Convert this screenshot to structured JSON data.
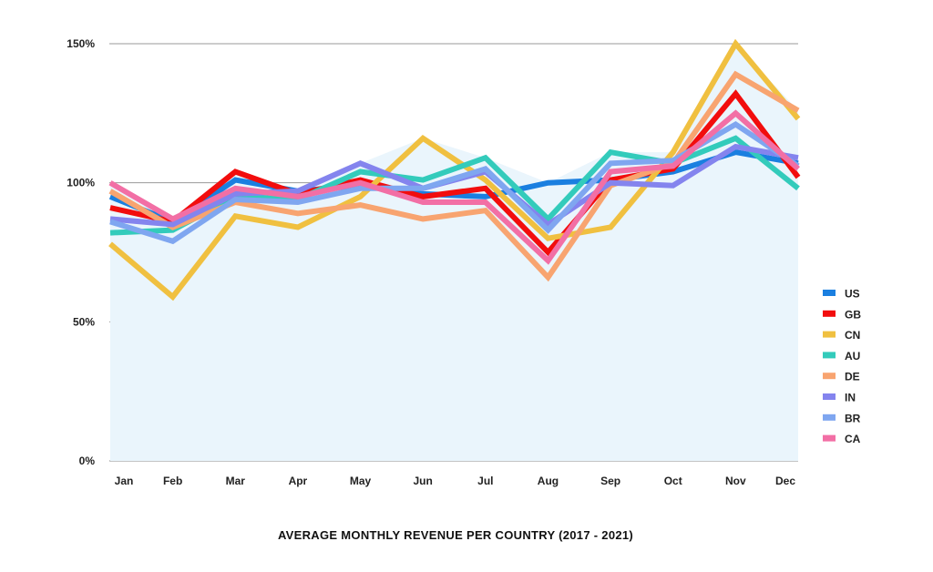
{
  "chart_data": {
    "type": "line",
    "title": "AVERAGE MONTHLY REVENUE PER COUNTRY (2017 - 2021)",
    "xlabel": "",
    "ylabel": "",
    "categories": [
      "Jan",
      "Feb",
      "Mar",
      "Apr",
      "May",
      "Jun",
      "Jul",
      "Aug",
      "Sep",
      "Oct",
      "Nov",
      "Dec"
    ],
    "y_ticks": [
      "0%",
      "50%",
      "100%",
      "150%"
    ],
    "ylim": [
      0,
      150
    ],
    "grid": true,
    "legend_position": "right",
    "area_fill_color": "#eaf5fc",
    "series": [
      {
        "name": "US",
        "color": "#1a7fe0",
        "values": [
          95,
          86,
          101,
          97,
          99,
          96,
          95,
          100,
          101,
          104,
          111,
          107
        ]
      },
      {
        "name": "GB",
        "color": "#f20d0d",
        "values": [
          91,
          86,
          104,
          96,
          101,
          95,
          98,
          75,
          101,
          105,
          132,
          102
        ]
      },
      {
        "name": "CN",
        "color": "#f0c040",
        "values": [
          78,
          59,
          88,
          84,
          95,
          116,
          101,
          80,
          84,
          111,
          150,
          123
        ]
      },
      {
        "name": "AU",
        "color": "#33cbbb",
        "values": [
          82,
          83,
          95,
          94,
          104,
          101,
          109,
          87,
          111,
          107,
          116,
          98
        ]
      },
      {
        "name": "DE",
        "color": "#f8a470",
        "values": [
          97,
          84,
          93,
          89,
          92,
          87,
          90,
          66,
          99,
          107,
          139,
          126
        ]
      },
      {
        "name": "IN",
        "color": "#8484ee",
        "values": [
          87,
          85,
          96,
          97,
          107,
          98,
          104,
          85,
          100,
          99,
          113,
          109
        ]
      },
      {
        "name": "BR",
        "color": "#7fa6f0",
        "values": [
          86,
          79,
          94,
          93,
          98,
          98,
          105,
          83,
          107,
          108,
          121,
          106
        ]
      },
      {
        "name": "CA",
        "color": "#f26fa5",
        "values": [
          100,
          87,
          98,
          95,
          100,
          93,
          93,
          72,
          104,
          106,
          125,
          105
        ]
      }
    ]
  }
}
